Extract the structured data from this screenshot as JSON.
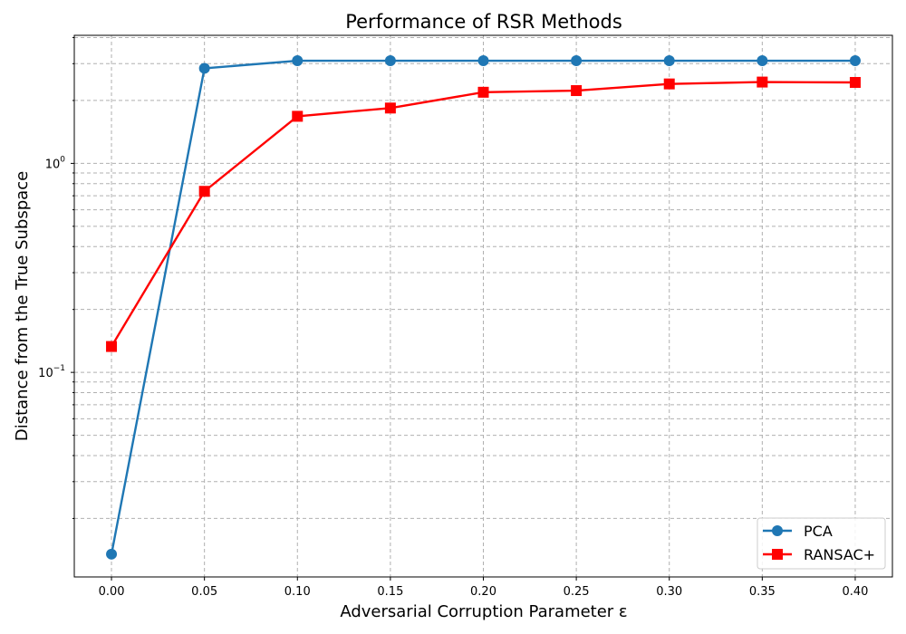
{
  "chart_data": {
    "type": "line",
    "title": "Performance of RSR Methods",
    "xlabel": "Adversarial Corruption Parameter ε",
    "ylabel": "Distance from the True Subspace",
    "x": [
      0.0,
      0.05,
      0.1,
      0.15,
      0.2,
      0.25,
      0.3,
      0.35,
      0.4
    ],
    "x_tick_labels": [
      "0.00",
      "0.05",
      "0.10",
      "0.15",
      "0.20",
      "0.25",
      "0.30",
      "0.35",
      "0.40"
    ],
    "xlim": [
      -0.02,
      0.42
    ],
    "yscale": "log",
    "ylim": [
      0.0105,
      4.1
    ],
    "y_tick_labels": [
      {
        "value": 0.1,
        "base": "10",
        "exp": "−1"
      },
      {
        "value": 1,
        "base": "10",
        "exp": "0"
      }
    ],
    "grid": true,
    "legend_position": "lower right",
    "series": [
      {
        "name": "PCA",
        "color": "#1f77b4",
        "marker": "circle",
        "values": [
          0.0135,
          2.85,
          3.1,
          3.1,
          3.1,
          3.1,
          3.1,
          3.1,
          3.1
        ]
      },
      {
        "name": "RANSAC+",
        "color": "#ff0000",
        "marker": "square",
        "values": [
          0.133,
          0.735,
          1.68,
          1.84,
          2.19,
          2.23,
          2.4,
          2.45,
          2.44
        ]
      }
    ]
  }
}
